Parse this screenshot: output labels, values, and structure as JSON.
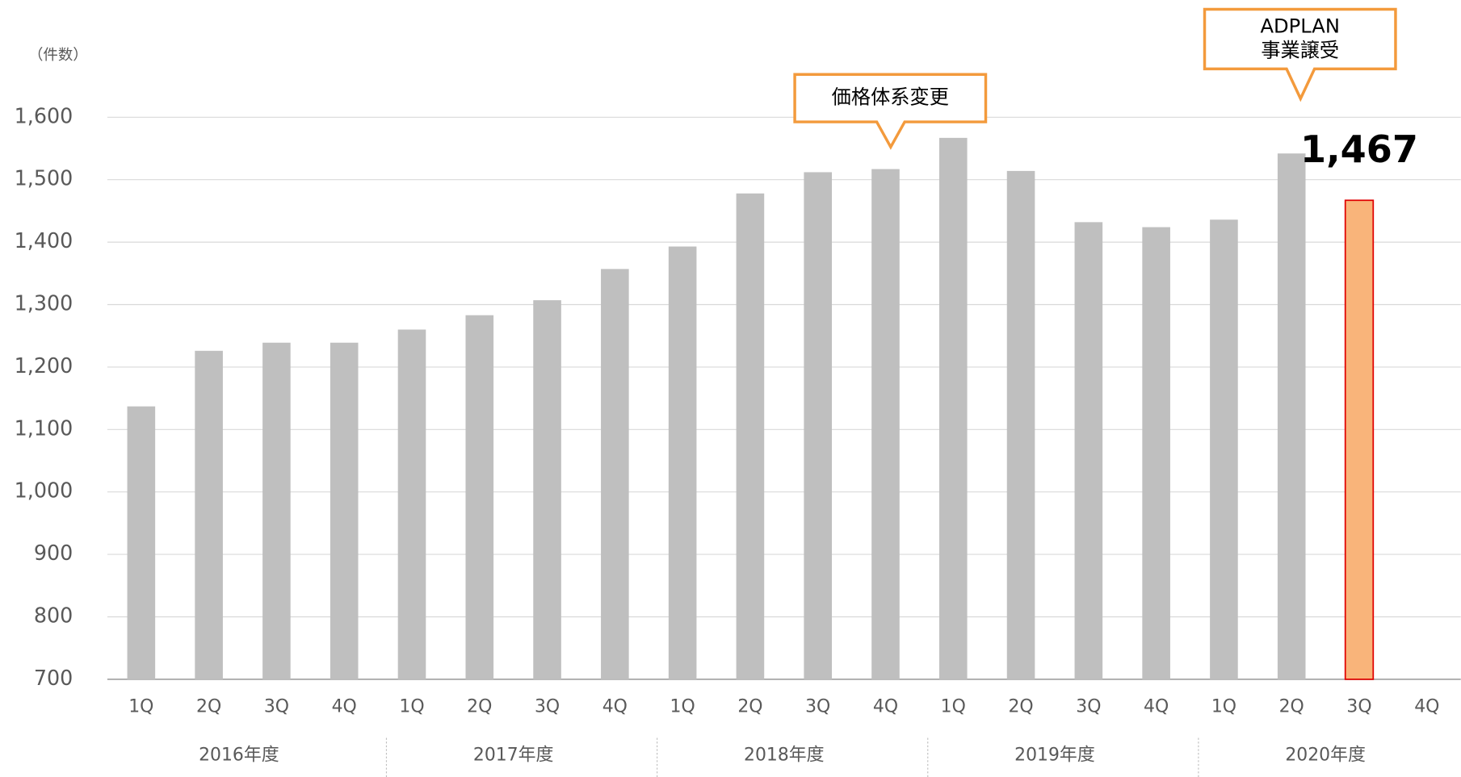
{
  "chart_data": {
    "type": "bar",
    "y_label": "（件数）",
    "categories": [
      "1Q",
      "2Q",
      "3Q",
      "4Q",
      "1Q",
      "2Q",
      "3Q",
      "4Q",
      "1Q",
      "2Q",
      "3Q",
      "4Q",
      "1Q",
      "2Q",
      "3Q",
      "4Q",
      "1Q",
      "2Q",
      "3Q",
      "4Q"
    ],
    "groups": [
      "2016年度",
      "2017年度",
      "2018年度",
      "2019年度",
      "2020年度"
    ],
    "values": [
      1137,
      1226,
      1239,
      1239,
      1260,
      1283,
      1307,
      1357,
      1393,
      1478,
      1512,
      1517,
      1567,
      1514,
      1432,
      1424,
      1436,
      1542,
      1467,
      null
    ],
    "colors": [
      "#bfbfbf",
      "#bfbfbf",
      "#bfbfbf",
      "#bfbfbf",
      "#bfbfbf",
      "#bfbfbf",
      "#bfbfbf",
      "#bfbfbf",
      "#bfbfbf",
      "#bfbfbf",
      "#bfbfbf",
      "#bfbfbf",
      "#bfbfbf",
      "#bfbfbf",
      "#bfbfbf",
      "#bfbfbf",
      "#bfbfbf",
      "#bfbfbf",
      "#f9b47a",
      "#bfbfbf"
    ],
    "value_labels": [
      null,
      null,
      null,
      null,
      null,
      null,
      null,
      null,
      null,
      null,
      null,
      null,
      null,
      null,
      null,
      null,
      null,
      null,
      "1,467",
      null
    ],
    "ylim": [
      700,
      1600
    ],
    "yticks": [
      {
        "value": 700,
        "label": "700"
      },
      {
        "value": 800,
        "label": "800"
      },
      {
        "value": 900,
        "label": "900"
      },
      {
        "value": 1000,
        "label": "1,000"
      },
      {
        "value": 1100,
        "label": "1,100"
      },
      {
        "value": 1200,
        "label": "1,200"
      },
      {
        "value": 1300,
        "label": "1,300"
      },
      {
        "value": 1400,
        "label": "1,400"
      },
      {
        "value": 1500,
        "label": "1,500"
      },
      {
        "value": 1600,
        "label": "1,600"
      }
    ],
    "grid": true,
    "annotations": [
      {
        "lines": [
          "価格体系変更"
        ]
      },
      {
        "lines": [
          "ADPLAN",
          "事業譲受"
        ]
      }
    ]
  }
}
